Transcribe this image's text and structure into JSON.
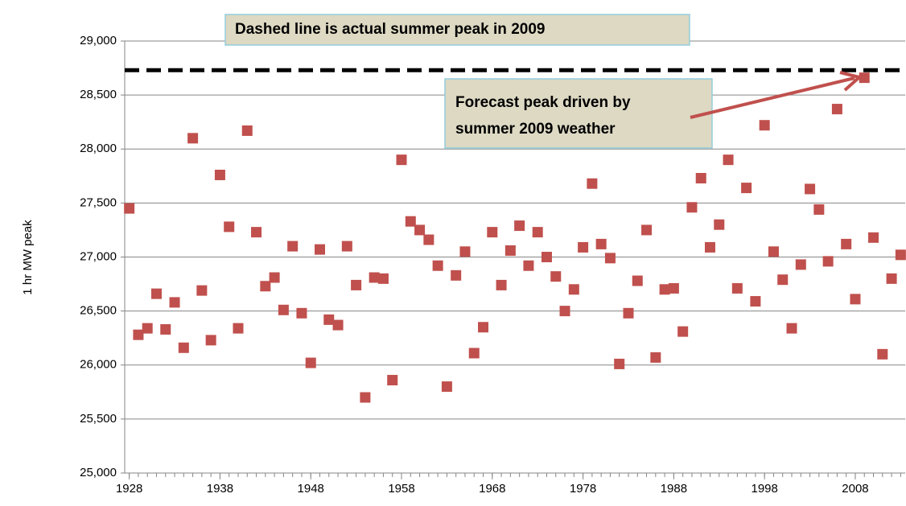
{
  "chart_data": {
    "type": "scatter",
    "y_label": "1 hr MW peak",
    "color": "#c0504d",
    "x": [
      1928,
      1929,
      1930,
      1931,
      1932,
      1933,
      1934,
      1935,
      1936,
      1937,
      1938,
      1939,
      1940,
      1941,
      1942,
      1943,
      1944,
      1945,
      1946,
      1947,
      1948,
      1949,
      1950,
      1951,
      1952,
      1953,
      1954,
      1955,
      1956,
      1957,
      1958,
      1959,
      1960,
      1961,
      1962,
      1963,
      1964,
      1965,
      1966,
      1967,
      1968,
      1969,
      1970,
      1971,
      1972,
      1973,
      1974,
      1975,
      1976,
      1977,
      1978,
      1979,
      1980,
      1981,
      1982,
      1983,
      1984,
      1985,
      1986,
      1987,
      1988,
      1989,
      1990,
      1991,
      1992,
      1993,
      1994,
      1995,
      1996,
      1997,
      1998,
      1999,
      2000,
      2001,
      2002,
      2003,
      2004,
      2005,
      2006,
      2007,
      2008,
      2009,
      2010,
      2011,
      2012,
      2013
    ],
    "values": [
      27450,
      26280,
      26340,
      26660,
      26330,
      26580,
      26160,
      28100,
      26690,
      26230,
      27760,
      27280,
      26340,
      28170,
      27230,
      26730,
      26810,
      26510,
      27100,
      26480,
      26020,
      27070,
      26420,
      26370,
      27100,
      26740,
      25700,
      26810,
      26800,
      25860,
      27900,
      27330,
      27250,
      27160,
      26920,
      25800,
      26830,
      27050,
      26110,
      26350,
      27230,
      26740,
      27060,
      27290,
      26920,
      27230,
      27000,
      26820,
      26500,
      26700,
      27090,
      27680,
      27120,
      26990,
      26010,
      26480,
      26780,
      27250,
      26070,
      26700,
      26710,
      26310,
      27460,
      27730,
      27090,
      27300,
      27900,
      26710,
      27640,
      26590,
      28220,
      27050,
      26790,
      26340,
      26930,
      27630,
      27440,
      26960,
      28370,
      27120,
      26610,
      28660,
      27180,
      26100,
      26800,
      27020
    ],
    "xlim": [
      1927.5,
      2013.5
    ],
    "xticks": [
      1928,
      1938,
      1948,
      1958,
      1968,
      1978,
      1988,
      1998,
      2008
    ],
    "ylim": [
      25000,
      29000
    ],
    "yticks": [
      {
        "value": 25000,
        "label": "25,000"
      },
      {
        "value": 25500,
        "label": "25,500"
      },
      {
        "value": 26000,
        "label": "26,000"
      },
      {
        "value": 26500,
        "label": "26,500"
      },
      {
        "value": 27000,
        "label": "27,000"
      },
      {
        "value": 27500,
        "label": "27,500"
      },
      {
        "value": 28000,
        "label": "28,000"
      },
      {
        "value": 28500,
        "label": "28,500"
      },
      {
        "value": 29000,
        "label": "29,000"
      }
    ],
    "grid": true,
    "reference_line": {
      "value": 28730,
      "color": "#000000"
    },
    "annotations": [
      "Dashed line is actual summer peak in 2009",
      "Forecast peak driven by",
      "summer 2009 weather"
    ]
  }
}
